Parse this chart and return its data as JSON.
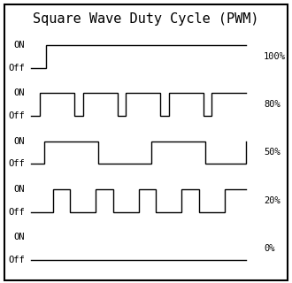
{
  "title": "Square Wave Duty Cycle (PWM)",
  "background_color": "#ffffff",
  "line_color": "#000000",
  "title_fontsize": 11,
  "label_fontsize": 7.5,
  "pct_fontsize": 7.5,
  "rows": [
    {
      "label": "100%",
      "wave": [
        0,
        0,
        0.07,
        0,
        0.07,
        1,
        1.0,
        1
      ]
    },
    {
      "label": "80%",
      "wave": [
        0,
        0,
        0.04,
        0,
        0.04,
        1,
        0.2,
        1,
        0.2,
        0,
        0.24,
        0,
        0.24,
        1,
        0.4,
        1,
        0.4,
        0,
        0.44,
        0,
        0.44,
        1,
        0.6,
        1,
        0.6,
        0,
        0.64,
        0,
        0.64,
        1,
        0.8,
        1,
        0.8,
        0,
        0.84,
        0,
        0.84,
        1,
        1.0,
        1
      ]
    },
    {
      "label": "50%",
      "wave": [
        0,
        0,
        0.06,
        0,
        0.06,
        1,
        0.31,
        1,
        0.31,
        0,
        0.56,
        0,
        0.56,
        1,
        0.81,
        1,
        0.81,
        0,
        1.0,
        0,
        1.0,
        1,
        1.0,
        1
      ]
    },
    {
      "label": "20%",
      "wave": [
        0,
        0,
        0.1,
        0,
        0.1,
        1,
        0.18,
        1,
        0.18,
        0,
        0.3,
        0,
        0.3,
        1,
        0.38,
        1,
        0.38,
        0,
        0.5,
        0,
        0.5,
        1,
        0.58,
        1,
        0.58,
        0,
        0.7,
        0,
        0.7,
        1,
        0.78,
        1,
        0.78,
        0,
        0.9,
        0,
        0.9,
        1,
        1.0,
        1
      ]
    },
    {
      "label": "0%",
      "wave": [
        0,
        0,
        1.0,
        0
      ]
    }
  ],
  "on_label": "ON",
  "off_label": "Off"
}
